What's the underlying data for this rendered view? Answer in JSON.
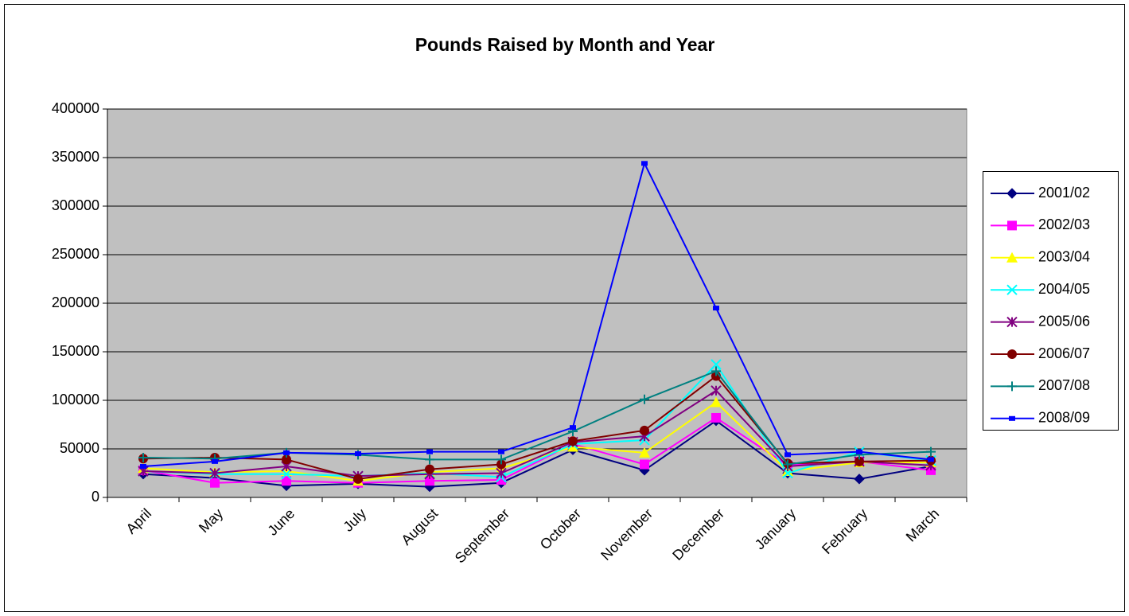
{
  "chart_data": {
    "type": "line",
    "title": "Pounds Raised by Month and Year",
    "categories": [
      "April",
      "May",
      "June",
      "July",
      "August",
      "September",
      "October",
      "November",
      "December",
      "January",
      "February",
      "March"
    ],
    "series": [
      {
        "name": "2001/02",
        "color": "#000080",
        "marker": "diamond",
        "values": [
          24000,
          20000,
          12000,
          14000,
          11000,
          15000,
          49000,
          28000,
          79000,
          25000,
          19000,
          32000
        ]
      },
      {
        "name": "2002/03",
        "color": "#ff00ff",
        "marker": "square",
        "values": [
          28000,
          15000,
          17000,
          15000,
          17000,
          18000,
          55000,
          34000,
          82000,
          33000,
          37000,
          28000
        ]
      },
      {
        "name": "2003/04",
        "color": "#ffff00",
        "marker": "triangle",
        "values": [
          30000,
          26000,
          27000,
          17000,
          26000,
          30000,
          52000,
          46000,
          98000,
          27000,
          36000,
          36000
        ]
      },
      {
        "name": "2004/05",
        "color": "#00ffff",
        "marker": "x",
        "values": [
          27000,
          24000,
          24000,
          22000,
          25000,
          21000,
          55000,
          59000,
          137000,
          25000,
          47000,
          38000
        ]
      },
      {
        "name": "2005/06",
        "color": "#800080",
        "marker": "star",
        "values": [
          27000,
          25000,
          32000,
          22000,
          24000,
          25000,
          57000,
          63000,
          110000,
          32000,
          37000,
          33000
        ]
      },
      {
        "name": "2006/07",
        "color": "#800000",
        "marker": "circle",
        "values": [
          40000,
          41000,
          39000,
          19000,
          29000,
          34000,
          58000,
          69000,
          125000,
          35000,
          37000,
          38000
        ]
      },
      {
        "name": "2007/08",
        "color": "#008080",
        "marker": "plus",
        "values": [
          41000,
          40000,
          46000,
          44000,
          39000,
          39000,
          68000,
          101000,
          130000,
          34000,
          44000,
          47000
        ]
      },
      {
        "name": "2008/09",
        "color": "#0000ff",
        "marker": "dash",
        "values": [
          32000,
          37000,
          46000,
          45000,
          47000,
          47000,
          72000,
          344000,
          195000,
          44000,
          47000,
          39000
        ]
      }
    ],
    "ylim": [
      0,
      400000
    ],
    "yticks": [
      0,
      50000,
      100000,
      150000,
      200000,
      250000,
      300000,
      350000,
      400000
    ],
    "grid": true,
    "legend": "right"
  }
}
